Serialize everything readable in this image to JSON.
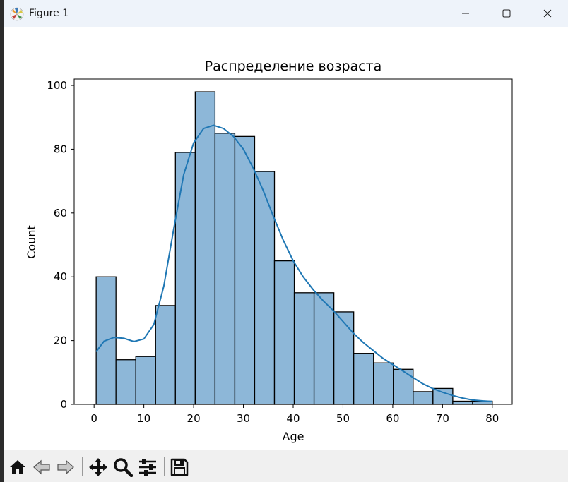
{
  "window": {
    "title": "Figure 1"
  },
  "chart_data": {
    "type": "bar",
    "title": "Распределение возраста",
    "xlabel": "Age",
    "ylabel": "Count",
    "xlim": [
      -4,
      84
    ],
    "ylim": [
      0,
      102
    ],
    "xticks": [
      0,
      10,
      20,
      30,
      40,
      50,
      60,
      70,
      80
    ],
    "yticks": [
      0,
      20,
      40,
      60,
      80,
      100
    ],
    "bin_edges": [
      0.42,
      4.4,
      8.38,
      12.36,
      16.34,
      20.32,
      24.3,
      28.28,
      32.26,
      36.24,
      40.22,
      44.2,
      48.18,
      52.16,
      56.14,
      60.12,
      64.1,
      68.08,
      72.06,
      76.04,
      80.0
    ],
    "counts": [
      40,
      14,
      15,
      31,
      79,
      98,
      85,
      84,
      73,
      45,
      35,
      35,
      29,
      16,
      13,
      11,
      4,
      5,
      1,
      1
    ],
    "bar_color": "#8db7d8",
    "edge_color": "#000000",
    "kde": {
      "color": "#1f77b4",
      "x": [
        0.42,
        2,
        4,
        6,
        8,
        10,
        12,
        14,
        16,
        18,
        20,
        22,
        24,
        26,
        28,
        30,
        32,
        34,
        36,
        38,
        40,
        42,
        44,
        46,
        48,
        50,
        52,
        54,
        56,
        58,
        60,
        62,
        64,
        66,
        68,
        70,
        72,
        74,
        76,
        78,
        80
      ],
      "y": [
        16.5,
        19.8,
        21,
        20.7,
        19.7,
        20.5,
        25,
        37,
        55,
        72,
        82,
        86.5,
        87.5,
        86.5,
        84,
        80,
        74,
        67,
        59,
        51.5,
        45,
        40,
        36,
        32.5,
        29.5,
        26,
        22.5,
        19.5,
        17,
        14.5,
        12.5,
        10.5,
        8.5,
        6.5,
        5,
        3.8,
        2.8,
        2,
        1.4,
        1.1,
        0.9
      ]
    }
  },
  "toolbar": {
    "tools": [
      {
        "icon": "home-icon"
      },
      {
        "icon": "back-arrow-icon"
      },
      {
        "icon": "forward-arrow-icon"
      },
      {
        "icon": "pan-icon"
      },
      {
        "icon": "zoom-icon"
      },
      {
        "icon": "configure-subplots-icon"
      },
      {
        "icon": "save-icon"
      }
    ]
  }
}
